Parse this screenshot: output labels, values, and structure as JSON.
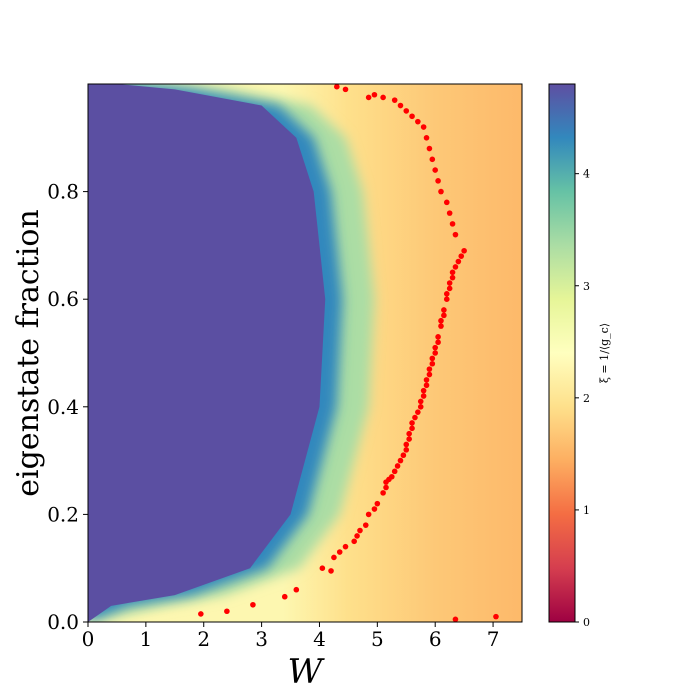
{
  "chart_data": {
    "type": "heatmap",
    "title": "",
    "xlabel": "W",
    "ylabel": "eigenstate fraction",
    "xlim": [
      0,
      7.5
    ],
    "ylim": [
      0,
      1.0
    ],
    "xticks": [
      0,
      1,
      2,
      3,
      4,
      5,
      6,
      7
    ],
    "yticks": [
      0.0,
      0.2,
      0.4,
      0.6,
      0.8
    ],
    "ytick_labels": [
      "0.0",
      "0.2",
      "0.4",
      "0.6",
      "0.8"
    ],
    "colormap": "Spectral",
    "colorbar": {
      "label": "ξ = 1/⟨g_c⟩",
      "range": [
        0,
        4.8
      ],
      "ticks": [
        0,
        1,
        2,
        3,
        4
      ],
      "tick_labels": [
        "0",
        "1",
        "2",
        "3",
        "4"
      ],
      "colors": {
        "low": "#9e0142",
        "mid": "#ffffbf",
        "high": "#5e4fa2"
      }
    },
    "heatmap_description": {
      "saturated_region_value": 4.8,
      "boundary_W_by_fraction": [
        {
          "fraction": 0.0,
          "W": 0.0
        },
        {
          "fraction": 0.03,
          "W": 0.4
        },
        {
          "fraction": 0.05,
          "W": 1.5
        },
        {
          "fraction": 0.1,
          "W": 2.8
        },
        {
          "fraction": 0.2,
          "W": 3.5
        },
        {
          "fraction": 0.4,
          "W": 4.0
        },
        {
          "fraction": 0.6,
          "W": 4.1
        },
        {
          "fraction": 0.8,
          "W": 3.9
        },
        {
          "fraction": 0.9,
          "W": 3.6
        },
        {
          "fraction": 0.96,
          "W": 3.0
        },
        {
          "fraction": 0.99,
          "W": 1.5
        },
        {
          "fraction": 1.0,
          "W": 0.5
        }
      ],
      "background_value_far": 1.7
    },
    "series": [
      {
        "type": "scatter",
        "color": "#ff0000",
        "x": [
          1.95,
          2.4,
          2.85,
          3.4,
          3.6,
          4.05,
          4.2,
          4.25,
          4.35,
          4.45,
          4.6,
          4.65,
          4.7,
          4.8,
          4.85,
          4.95,
          5.0,
          5.1,
          5.15,
          5.15,
          5.2,
          5.25,
          5.3,
          5.35,
          5.4,
          5.45,
          5.5,
          5.5,
          5.55,
          5.55,
          5.6,
          5.6,
          5.65,
          5.7,
          5.75,
          5.75,
          5.8,
          5.8,
          5.85,
          5.85,
          5.9,
          5.9,
          5.95,
          5.95,
          6.0,
          6.0,
          6.05,
          6.05,
          6.1,
          6.1,
          6.15,
          6.15,
          6.2,
          6.2,
          6.25,
          6.25,
          6.3,
          6.3,
          6.35,
          6.4,
          6.45,
          6.5,
          6.35,
          6.3,
          6.25,
          6.2,
          6.1,
          6.05,
          6.0,
          5.95,
          5.9,
          5.85,
          5.8,
          5.7,
          5.6,
          5.5,
          5.4,
          5.3,
          5.1,
          4.95,
          4.85,
          4.45,
          4.3,
          6.35,
          7.05
        ],
        "y": [
          0.015,
          0.02,
          0.032,
          0.047,
          0.06,
          0.1,
          0.095,
          0.12,
          0.13,
          0.14,
          0.15,
          0.16,
          0.17,
          0.18,
          0.2,
          0.21,
          0.22,
          0.24,
          0.25,
          0.26,
          0.265,
          0.27,
          0.28,
          0.29,
          0.3,
          0.31,
          0.32,
          0.33,
          0.34,
          0.35,
          0.36,
          0.37,
          0.38,
          0.39,
          0.4,
          0.41,
          0.42,
          0.43,
          0.44,
          0.45,
          0.46,
          0.47,
          0.48,
          0.49,
          0.5,
          0.51,
          0.52,
          0.53,
          0.55,
          0.56,
          0.57,
          0.58,
          0.6,
          0.61,
          0.62,
          0.63,
          0.64,
          0.65,
          0.66,
          0.67,
          0.68,
          0.69,
          0.72,
          0.74,
          0.76,
          0.78,
          0.8,
          0.82,
          0.84,
          0.86,
          0.88,
          0.9,
          0.92,
          0.93,
          0.94,
          0.95,
          0.96,
          0.97,
          0.975,
          0.98,
          0.975,
          0.99,
          0.995,
          0.005,
          0.01
        ]
      }
    ],
    "grid": false,
    "legend": "none"
  }
}
